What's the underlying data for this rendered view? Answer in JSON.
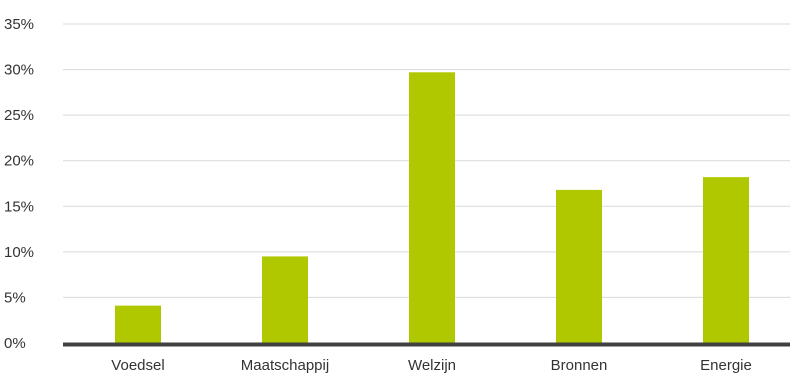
{
  "chart_data": {
    "type": "bar",
    "categories": [
      "Voedsel",
      "Maatschappij",
      "Welzijn",
      "Bronnen",
      "Energie"
    ],
    "values": [
      4.1,
      9.5,
      29.7,
      16.8,
      18.2
    ],
    "y_ticks": [
      "0%",
      "5%",
      "10%",
      "15%",
      "20%",
      "25%",
      "30%",
      "35%"
    ],
    "ylim": [
      0,
      35
    ],
    "grid": true,
    "legend": "none",
    "colors": {
      "bar": "#b0c800",
      "grid": "#d9d9d9",
      "axis": "#404040",
      "text": "#333333"
    }
  }
}
